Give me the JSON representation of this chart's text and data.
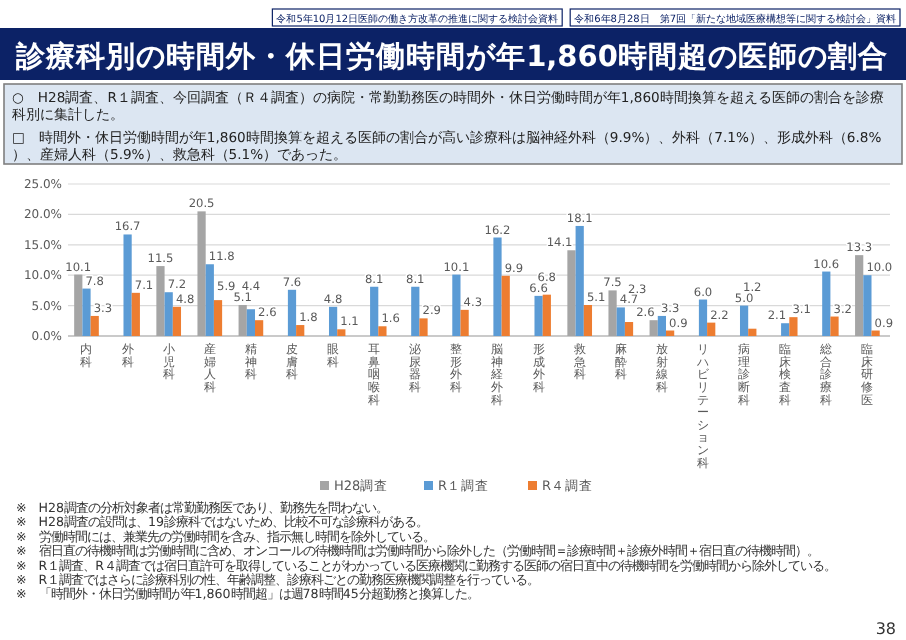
{
  "chart_data": {
    "type": "bar",
    "title": "診療科別の時間外・休日労働時間が年1,860時間超の医師の割合",
    "annotations": [
      "令和5年10月12日医師の働き方改革の推進に関する検討会資料",
      "令和6年8月28日　第7回「新たな地域医療構想等に関する検討会」資料",
      "○　H28調査、R１調査、今回調査（Ｒ４調査）の病院・常勤勤務医の時間外・休日労働時間が年1,860時間換算を超える医師の割合を診療科別に集計した。",
      "□　時間外・休日労働時間が年1,860時間換算を超える医師の割合が高い診療科は脳神経外科（9.9%）、外科（7.1%）、形成外科（6.8%）、産婦人科（5.9%）、救急科（5.1%）であった。",
      "※　H28調査の分析対象者は常勤勤務医であり、勤務先を問わない。",
      "※　H28調査の設問は、19診療科ではないため、比較不可な診療科がある。",
      "※　労働時間には、兼業先の労働時間を含み、指示無し時間を除外している。",
      "※　宿日直の待機時間は労働時間に含め、オンコールの待機時間は労働時間から除外した（労働時間＝診療時間＋診療外時間＋宿日直の待機時間）。",
      "※　R１調査、R４調査では宿日直許可を取得していることがわかっている医療機関に勤務する医師の宿日直中の待機時間を労働時間から除外している。",
      "※　R１調査ではさらに診療科別の性、年齢調整、診療科ごとの勤務医療機関調整を行っている。",
      "※　「時間外・休日労働時間が年1,860時間超」は週78時間45分超勤務と換算した。",
      "38"
    ],
    "categories": [
      "内科",
      "外科",
      "小児科",
      "産婦人科",
      "精神科",
      "皮膚科",
      "眼科",
      "耳鼻咽喉科",
      "泌尿器科",
      "整形外科",
      "脳神経外科",
      "形成外科",
      "救急科",
      "麻酔科",
      "放射線科",
      "リハビリテーション科",
      "病理診断科",
      "臨床検査科",
      "総合診療科",
      "臨床研修医"
    ],
    "series": [
      {
        "name": "H28調査",
        "color": "#a5a5a5",
        "values": [
          10.1,
          null,
          11.5,
          20.5,
          5.1,
          null,
          null,
          null,
          null,
          null,
          null,
          null,
          14.1,
          7.5,
          2.6,
          null,
          null,
          null,
          null,
          13.3
        ],
        "value_labels": [
          "10.1",
          null,
          "11.5",
          "20.5",
          "5.1",
          null,
          null,
          null,
          null,
          null,
          null,
          null,
          "14.1",
          "7.5",
          "2.6",
          null,
          null,
          null,
          null,
          "13.3"
        ]
      },
      {
        "name": "R１調査",
        "color": "#5b9bd5",
        "values": [
          7.8,
          16.7,
          7.2,
          11.8,
          4.4,
          7.6,
          4.8,
          8.1,
          8.1,
          10.1,
          16.2,
          6.6,
          18.1,
          4.7,
          3.3,
          6.0,
          5.0,
          2.1,
          10.6,
          10.0
        ],
        "value_labels": [
          "7.8",
          "16.7",
          "7.2",
          "11.8",
          "4.4",
          "7.6",
          "4.8",
          "8.1",
          "8.1",
          "10.1",
          "16.2",
          "6.6",
          "18.1",
          "4.7",
          "3.3",
          "6.0",
          "5.0",
          "2.1",
          "10.6",
          "10.0"
        ]
      },
      {
        "name": "R４調査",
        "color": "#ed7d31",
        "values": [
          3.3,
          7.1,
          4.8,
          5.9,
          2.6,
          1.8,
          1.1,
          1.6,
          2.9,
          4.3,
          9.9,
          6.8,
          5.1,
          2.3,
          0.9,
          2.2,
          1.2,
          3.1,
          3.2,
          0.9
        ],
        "value_labels": [
          "3.3",
          "7.1",
          "4.8",
          "5.9",
          "2.6",
          "1.8",
          "1.1",
          "1.6",
          "2.9",
          "4.3",
          "9.9",
          "6.8",
          "5.1",
          "2.3",
          "0.9",
          "2.2",
          "1.2",
          "3.1",
          "3.2",
          "0.9"
        ]
      }
    ],
    "ylim": [
      0,
      25
    ],
    "yticks": [
      {
        "value": 0,
        "label": "0.0%"
      },
      {
        "value": 5,
        "label": "5.0%"
      },
      {
        "value": 10,
        "label": "10.0%"
      },
      {
        "value": 15,
        "label": "15.0%"
      },
      {
        "value": 20,
        "label": "20.0%"
      },
      {
        "value": 25,
        "label": "25.0%"
      }
    ],
    "grid": "y",
    "legend": "bottom"
  }
}
